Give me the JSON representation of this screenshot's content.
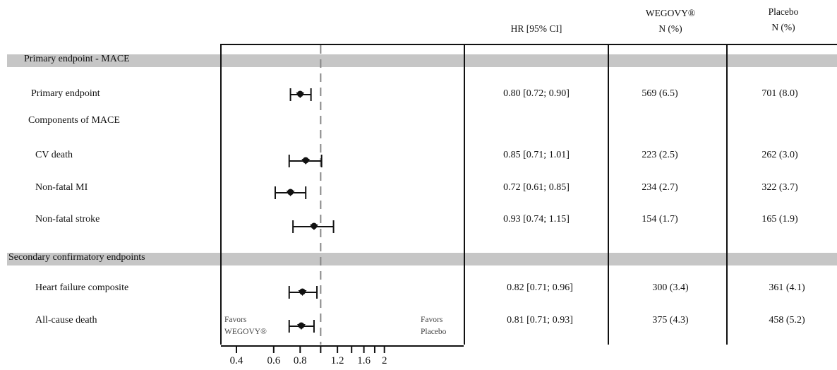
{
  "headers": {
    "hr": "HR [95% CI]",
    "wegovy_line1": "WEGOVY®",
    "wegovy_line2": "N (%)",
    "placebo_line1": "Placebo",
    "placebo_line2": "N (%)"
  },
  "sections": {
    "primary": "Primary endpoint - MACE",
    "secondary": "Secondary confirmatory endpoints"
  },
  "subheading": "Components of MACE",
  "rows": [
    {
      "label": "Primary endpoint",
      "hr_text": "0.80 [0.72; 0.90]",
      "wegovy": "569 (6.5)",
      "placebo": "701 (8.0)"
    },
    {
      "label": "CV death",
      "hr_text": "0.85 [0.71; 1.01]",
      "wegovy": "223 (2.5)",
      "placebo": "262 (3.0)"
    },
    {
      "label": "Non-fatal MI",
      "hr_text": "0.72 [0.61; 0.85]",
      "wegovy": "234 (2.7)",
      "placebo": "322 (3.7)"
    },
    {
      "label": "Non-fatal stroke",
      "hr_text": "0.93 [0.74; 1.15]",
      "wegovy": "154 (1.7)",
      "placebo": "165 (1.9)"
    },
    {
      "label": "Heart failure composite",
      "hr_text": "0.82 [0.71; 0.96]",
      "wegovy": "300 (3.4)",
      "placebo": "361 (4.1)"
    },
    {
      "label": "All-cause death",
      "hr_text": "0.81 [0.71; 0.93]",
      "wegovy": "375 (4.3)",
      "placebo": "458 (5.2)"
    }
  ],
  "favors": {
    "left_line1": "Favors",
    "left_line2": "WEGOVY®",
    "right_line1": "Favors",
    "right_line2": "Placebo"
  },
  "colors": {
    "band": "#c6c6c6",
    "ink": "#111111",
    "reference_line": "#888888"
  },
  "chart_data": {
    "type": "forest",
    "x_scale": "log",
    "reference_value": 1.0,
    "ticks": [
      {
        "value": 0.4,
        "label": "0.4"
      },
      {
        "value": 0.6,
        "label": "0.6"
      },
      {
        "value": 0.8,
        "label": "0.8"
      },
      {
        "value": 1.2,
        "label": "1.2"
      },
      {
        "value": 1.6,
        "label": "1.6"
      },
      {
        "value": 2.0,
        "label": "2"
      }
    ],
    "unlabeled_ticks": [
      1.0,
      1.4,
      1.8
    ],
    "points": [
      {
        "label": "Primary endpoint",
        "hr": 0.8,
        "lo": 0.72,
        "hi": 0.9
      },
      {
        "label": "CV death",
        "hr": 0.85,
        "lo": 0.71,
        "hi": 1.01
      },
      {
        "label": "Non-fatal MI",
        "hr": 0.72,
        "lo": 0.61,
        "hi": 0.85
      },
      {
        "label": "Non-fatal stroke",
        "hr": 0.93,
        "lo": 0.74,
        "hi": 1.15
      },
      {
        "label": "Heart failure composite",
        "hr": 0.82,
        "lo": 0.71,
        "hi": 0.96
      },
      {
        "label": "All-cause death",
        "hr": 0.81,
        "lo": 0.71,
        "hi": 0.93
      }
    ]
  }
}
